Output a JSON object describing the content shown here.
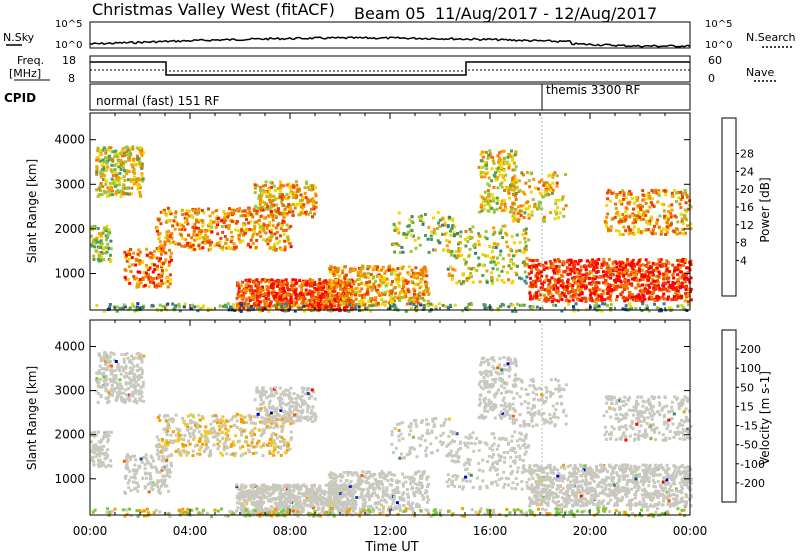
{
  "header": {
    "station": "Christmas Valley West (fitACF)",
    "beam": "Beam 05",
    "date_range": "11/Aug/2017 - 12/Aug/2017"
  },
  "top_panels": {
    "nsky_label": "N.Sky",
    "nsearch_label": "N.Search",
    "nsky_ticks": [
      "10^5",
      "10^0"
    ],
    "nsky_ticks_right": [
      "10^5",
      "10^0"
    ],
    "freq_label_1": "Freq.",
    "freq_label_2": "[MHz]",
    "freq_ticks": [
      "18",
      "8"
    ],
    "nave_label": "Nave",
    "nave_ticks": [
      "60",
      "0"
    ],
    "cpid_label": "CPID",
    "cpid_1": "normal (fast) 151 RF",
    "cpid_2": "themis 3300 RF"
  },
  "chart_data": [
    {
      "type": "heatmap",
      "title": "",
      "xlabel": "",
      "ylabel": "Slant Range [km]",
      "x_range": [
        "00:00",
        "00:00"
      ],
      "ylim": [
        180,
        4600
      ],
      "yticks": [
        "4000",
        "3000",
        "2000",
        "1000"
      ],
      "colorbar": {
        "label": "Power [dB]",
        "ticks": [
          "28",
          "24",
          "20",
          "16",
          "12",
          "8",
          "4"
        ],
        "colors": [
          "#0000ff",
          "#1e3c96",
          "#3c7896",
          "#50a050",
          "#96c83c",
          "#f0d700",
          "#f0a000",
          "#f07800",
          "#f04000",
          "#ff0000"
        ]
      }
    },
    {
      "type": "heatmap",
      "title": "",
      "xlabel": "Time UT",
      "ylabel": "Slant Range [km]",
      "x_range": [
        "00:00",
        "00:00"
      ],
      "xticks": [
        "00:00",
        "04:00",
        "08:00",
        "12:00",
        "16:00",
        "20:00",
        "00:00"
      ],
      "ylim": [
        180,
        4600
      ],
      "yticks": [
        "4000",
        "3000",
        "2000",
        "1000"
      ],
      "colorbar": {
        "label": "Velocity [m s-1]",
        "ticks": [
          "200",
          "100",
          "50",
          "15",
          "-15",
          "-50",
          "-100",
          "-200"
        ],
        "colors": [
          "#0000c8",
          "#1e46a0",
          "#3c8c64",
          "#78c83c",
          "#c8c8be",
          "#f0c828",
          "#f0a000",
          "#f06400",
          "#ff0000"
        ]
      }
    }
  ]
}
